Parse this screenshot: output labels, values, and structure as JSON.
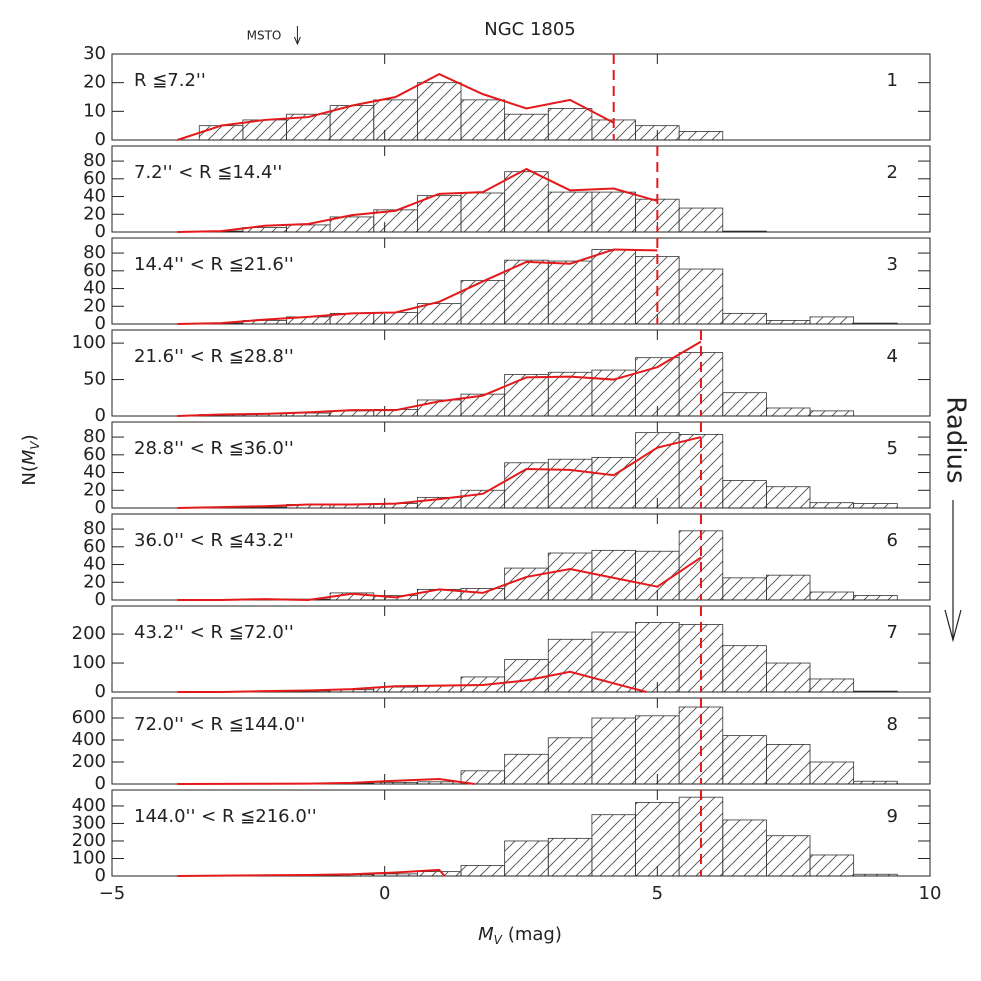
{
  "chart_data": {
    "type": "histogram",
    "title": "NGC 1805",
    "msto_label": "MSTO",
    "msto_x": -1.6,
    "radius_label": "Radius",
    "x_label": {
      "symbol": "M",
      "sub": "V",
      "unit": "(mag)"
    },
    "y_label": {
      "prefix": "N(",
      "symbol": "M",
      "sub": "V",
      "suffix": ")"
    },
    "xlim": [
      -5,
      10
    ],
    "xticks": [
      {
        "value": -5,
        "label": "−5"
      },
      0,
      5,
      10
    ],
    "bins": [
      -4.2,
      -3.4,
      -2.6,
      -1.8,
      -1.0,
      -0.2,
      0.6,
      1.4,
      2.2,
      3.0,
      3.8,
      4.6,
      5.4,
      6.2,
      7.0,
      7.8,
      8.6,
      9.4
    ],
    "bar_color": "#333333",
    "line_color": "#e3191c",
    "panels": [
      {
        "label": "R ≦7.2''",
        "number": 1,
        "ylim": [
          0,
          30
        ],
        "yticks": [
          0,
          10,
          20,
          30
        ],
        "cutoff": 4.2,
        "values": [
          0,
          5,
          7,
          9,
          12,
          14,
          20,
          14,
          9,
          11,
          7,
          5,
          3,
          0,
          0,
          0,
          0
        ],
        "line": {
          "x": [
            -3.8,
            -3.0,
            -2.2,
            -1.4,
            -0.6,
            0.2,
            1.0,
            1.8,
            2.6,
            3.4,
            4.2
          ],
          "values": [
            0,
            5,
            7,
            8,
            12,
            15,
            23,
            16,
            11,
            14,
            6
          ]
        }
      },
      {
        "label": "7.2'' < R ≦14.4''",
        "number": 2,
        "ylim": [
          0,
          97
        ],
        "yticks": [
          0,
          20,
          40,
          60,
          80
        ],
        "cutoff": 5.0,
        "values": [
          0,
          1,
          5,
          8,
          17,
          25,
          41,
          44,
          68,
          45,
          45,
          37,
          27,
          1,
          0,
          0,
          0
        ],
        "line": {
          "x": [
            -3.8,
            -3.0,
            -2.2,
            -1.4,
            -0.6,
            0.2,
            1.0,
            1.8,
            2.6,
            3.4,
            4.2,
            5.0
          ],
          "values": [
            0,
            1,
            7,
            9,
            19,
            24,
            43,
            45,
            71,
            47,
            49,
            35
          ]
        }
      },
      {
        "label": "14.4'' < R ≦21.6''",
        "number": 3,
        "ylim": [
          0,
          97
        ],
        "yticks": [
          0,
          20,
          40,
          60,
          80
        ],
        "cutoff": 5.0,
        "values": [
          0,
          1,
          4,
          8,
          12,
          13,
          23,
          49,
          72,
          71,
          84,
          76,
          62,
          12,
          4,
          8,
          1
        ],
        "line": {
          "x": [
            -3.8,
            -3.0,
            -2.2,
            -1.4,
            -0.6,
            0.2,
            1.0,
            1.8,
            2.6,
            3.4,
            4.2,
            5.0
          ],
          "values": [
            0,
            1,
            5,
            8,
            12,
            13,
            25,
            48,
            70,
            68,
            84,
            83
          ]
        }
      },
      {
        "label": "21.6'' < R ≦28.8''",
        "number": 4,
        "ylim": [
          0,
          118
        ],
        "yticks": [
          0,
          50,
          100
        ],
        "cutoff": 5.8,
        "values": [
          0,
          2,
          3,
          4,
          7,
          9,
          22,
          30,
          57,
          60,
          63,
          80,
          87,
          32,
          11,
          7,
          0
        ],
        "line": {
          "x": [
            -3.8,
            -3.0,
            -2.2,
            -1.4,
            -0.6,
            0.2,
            1.0,
            1.8,
            2.6,
            3.4,
            4.2,
            5.0,
            5.8
          ],
          "values": [
            0,
            2,
            3,
            5,
            8,
            8,
            20,
            28,
            53,
            54,
            50,
            67,
            102
          ]
        }
      },
      {
        "label": "28.8'' < R ≦36.0''",
        "number": 5,
        "ylim": [
          0,
          97
        ],
        "yticks": [
          0,
          20,
          40,
          60,
          80
        ],
        "cutoff": 5.8,
        "values": [
          0,
          1,
          1,
          4,
          4,
          5,
          12,
          20,
          51,
          55,
          57,
          85,
          83,
          31,
          24,
          6,
          5
        ],
        "line": {
          "x": [
            -3.8,
            -3.0,
            -2.2,
            -1.4,
            -0.6,
            0.2,
            1.0,
            1.8,
            2.6,
            3.4,
            4.2,
            5.0,
            5.8
          ],
          "values": [
            0,
            1,
            2,
            4,
            4,
            5,
            10,
            16,
            44,
            43,
            37,
            68,
            80
          ]
        }
      },
      {
        "label": "36.0'' < R ≦43.2''",
        "number": 6,
        "ylim": [
          0,
          97
        ],
        "yticks": [
          0,
          20,
          40,
          60,
          80
        ],
        "cutoff": 5.8,
        "values": [
          0,
          0,
          1,
          1,
          8,
          5,
          12,
          13,
          36,
          53,
          56,
          55,
          78,
          25,
          28,
          9,
          5
        ],
        "line": {
          "x": [
            -3.8,
            -3.0,
            -2.2,
            -1.4,
            -0.6,
            0.2,
            1.0,
            1.8,
            2.6,
            3.4,
            4.2,
            5.0,
            5.8
          ],
          "values": [
            0,
            0,
            1,
            0,
            7,
            3,
            12,
            8,
            26,
            35,
            25,
            15,
            48
          ]
        }
      },
      {
        "label": "43.2'' < R ≦72.0''",
        "number": 7,
        "ylim": [
          0,
          297
        ],
        "yticks": [
          0,
          100,
          200
        ],
        "cutoff": 5.8,
        "values": [
          0,
          0,
          2,
          4,
          8,
          17,
          23,
          52,
          112,
          182,
          207,
          240,
          233,
          160,
          100,
          45,
          3
        ],
        "line": {
          "x": [
            -3.8,
            -3.0,
            -2.2,
            -1.4,
            -0.6,
            0.2,
            1.0,
            1.8,
            2.6,
            3.4,
            4.8
          ],
          "values": [
            0,
            0,
            3,
            5,
            10,
            20,
            22,
            24,
            40,
            70,
            0
          ]
        }
      },
      {
        "label": "72.0'' < R ≦144.0''",
        "number": 8,
        "ylim": [
          0,
          782
        ],
        "yticks": [
          0,
          200,
          400,
          600
        ],
        "cutoff": 5.8,
        "values": [
          0,
          0,
          2,
          4,
          8,
          15,
          20,
          120,
          270,
          420,
          600,
          620,
          700,
          440,
          360,
          200,
          25
        ],
        "line": {
          "x": [
            -3.8,
            -3.0,
            -2.2,
            -1.4,
            -0.6,
            0.2,
            1.0,
            1.65
          ],
          "values": [
            0,
            1,
            2,
            3,
            10,
            30,
            45,
            0
          ]
        }
      },
      {
        "label": "144.0'' < R ≦216.0''",
        "number": 9,
        "ylim": [
          0,
          491
        ],
        "yticks": [
          0,
          100,
          200,
          300,
          400
        ],
        "cutoff": 5.8,
        "values": [
          0,
          0,
          2,
          4,
          8,
          12,
          25,
          60,
          200,
          215,
          350,
          420,
          450,
          320,
          230,
          120,
          10
        ],
        "line": {
          "x": [
            -3.8,
            -3.0,
            -2.2,
            -1.4,
            -0.6,
            0.2,
            1.0,
            1.1
          ],
          "values": [
            0,
            2,
            4,
            6,
            10,
            20,
            35,
            0
          ]
        }
      }
    ]
  }
}
